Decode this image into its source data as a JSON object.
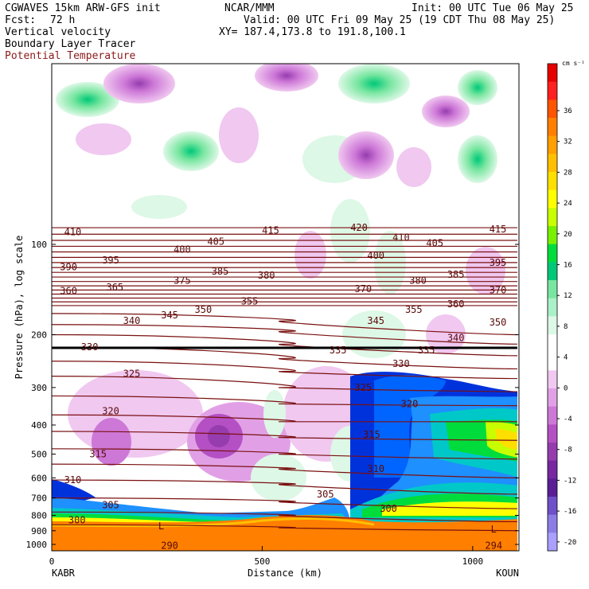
{
  "header": {
    "model": "CGWAVES 15km ARW-GFS init",
    "agency": "NCAR/MMM",
    "init": "Init: 00 UTC Tue 06 May 25",
    "fcst_label": "Fcst:",
    "fcst_value": "72 h",
    "valid": "Valid: 00 UTC Fri 09 May 25 (19 CDT Thu 08 May 25)",
    "field1": "Vertical velocity",
    "xy": "XY= 187.4,173.8 to 191.8,100.1",
    "field2": "Boundary Layer Tracer",
    "field3": "Potential Temperature"
  },
  "chart_data": {
    "type": "heatmap",
    "xlabel": "Distance (km)",
    "ylabel": "Pressure (hPa), log scale",
    "x_ticks": [
      0,
      500,
      1000
    ],
    "x_range": [
      0,
      1110
    ],
    "y_ticks": [
      100,
      200,
      300,
      400,
      500,
      600,
      700,
      800,
      900,
      1000
    ],
    "y_log_scale": true,
    "left_station": "KABR",
    "right_station": "KOUN",
    "colorbar": {
      "unit": "cm s⁻¹",
      "ticks": [
        36,
        32,
        28,
        24,
        20,
        16,
        12,
        8,
        4,
        0,
        -4,
        -8,
        -12,
        -16,
        -20
      ],
      "colors": [
        "#e60000",
        "#ff2020",
        "#ff5400",
        "#ff7f00",
        "#ff9f00",
        "#ffbf00",
        "#ffdf00",
        "#ffff00",
        "#c8ff00",
        "#78f000",
        "#00dc3c",
        "#00c878",
        "#78e6a0",
        "#aaf0c8",
        "#ddf8e6",
        "#ffffff",
        "#ffffff",
        "#f0c8f0",
        "#e1a0e6",
        "#cd78d7",
        "#b450c3",
        "#963caf",
        "#7828a0",
        "#5a1e96",
        "#6e50c8",
        "#8c7de6",
        "#aaa0ff"
      ]
    },
    "theta_labels": [
      {
        "v": "410",
        "x": 50,
        "p": 91
      },
      {
        "v": "415",
        "x": 520,
        "p": 90
      },
      {
        "v": "420",
        "x": 730,
        "p": 88
      },
      {
        "v": "415",
        "x": 1060,
        "p": 89
      },
      {
        "v": "405",
        "x": 390,
        "p": 98
      },
      {
        "v": "410",
        "x": 830,
        "p": 95
      },
      {
        "v": "405",
        "x": 910,
        "p": 99
      },
      {
        "v": "400",
        "x": 310,
        "p": 104
      },
      {
        "v": "400",
        "x": 770,
        "p": 109
      },
      {
        "v": "395",
        "x": 140,
        "p": 113
      },
      {
        "v": "395",
        "x": 1060,
        "p": 115
      },
      {
        "v": "390",
        "x": 40,
        "p": 119
      },
      {
        "v": "385",
        "x": 400,
        "p": 123
      },
      {
        "v": "380",
        "x": 510,
        "p": 127
      },
      {
        "v": "385",
        "x": 960,
        "p": 126
      },
      {
        "v": "380",
        "x": 870,
        "p": 132
      },
      {
        "v": "375",
        "x": 310,
        "p": 132
      },
      {
        "v": "370",
        "x": 740,
        "p": 141
      },
      {
        "v": "370",
        "x": 1060,
        "p": 142
      },
      {
        "v": "365",
        "x": 150,
        "p": 139
      },
      {
        "v": "360",
        "x": 40,
        "p": 143
      },
      {
        "v": "360",
        "x": 960,
        "p": 158
      },
      {
        "v": "355",
        "x": 470,
        "p": 155
      },
      {
        "v": "355",
        "x": 860,
        "p": 165
      },
      {
        "v": "350",
        "x": 360,
        "p": 165
      },
      {
        "v": "350",
        "x": 1060,
        "p": 182
      },
      {
        "v": "345",
        "x": 280,
        "p": 172
      },
      {
        "v": "345",
        "x": 770,
        "p": 180
      },
      {
        "v": "340",
        "x": 190,
        "p": 180
      },
      {
        "v": "340",
        "x": 960,
        "p": 205
      },
      {
        "v": "335",
        "x": 680,
        "p": 225
      },
      {
        "v": "335",
        "x": 890,
        "p": 225
      },
      {
        "v": "330",
        "x": 90,
        "p": 220
      },
      {
        "v": "330",
        "x": 830,
        "p": 250
      },
      {
        "v": "325",
        "x": 190,
        "p": 270
      },
      {
        "v": "325",
        "x": 740,
        "p": 300
      },
      {
        "v": "320",
        "x": 140,
        "p": 360
      },
      {
        "v": "320",
        "x": 850,
        "p": 340
      },
      {
        "v": "315",
        "x": 110,
        "p": 500
      },
      {
        "v": "315",
        "x": 760,
        "p": 430
      },
      {
        "v": "310",
        "x": 50,
        "p": 610
      },
      {
        "v": "310",
        "x": 770,
        "p": 560
      },
      {
        "v": "305",
        "x": 140,
        "p": 740
      },
      {
        "v": "305",
        "x": 650,
        "p": 680
      },
      {
        "v": "300",
        "x": 60,
        "p": 830
      },
      {
        "v": "300",
        "x": 800,
        "p": 760
      },
      {
        "v": "290",
        "x": 280,
        "p": 1010
      },
      {
        "v": "294",
        "x": 1050,
        "p": 1010
      }
    ],
    "low_markers": [
      {
        "v": "L",
        "x": 260,
        "p": 870
      },
      {
        "v": "L",
        "x": 1050,
        "p": 890
      }
    ]
  }
}
